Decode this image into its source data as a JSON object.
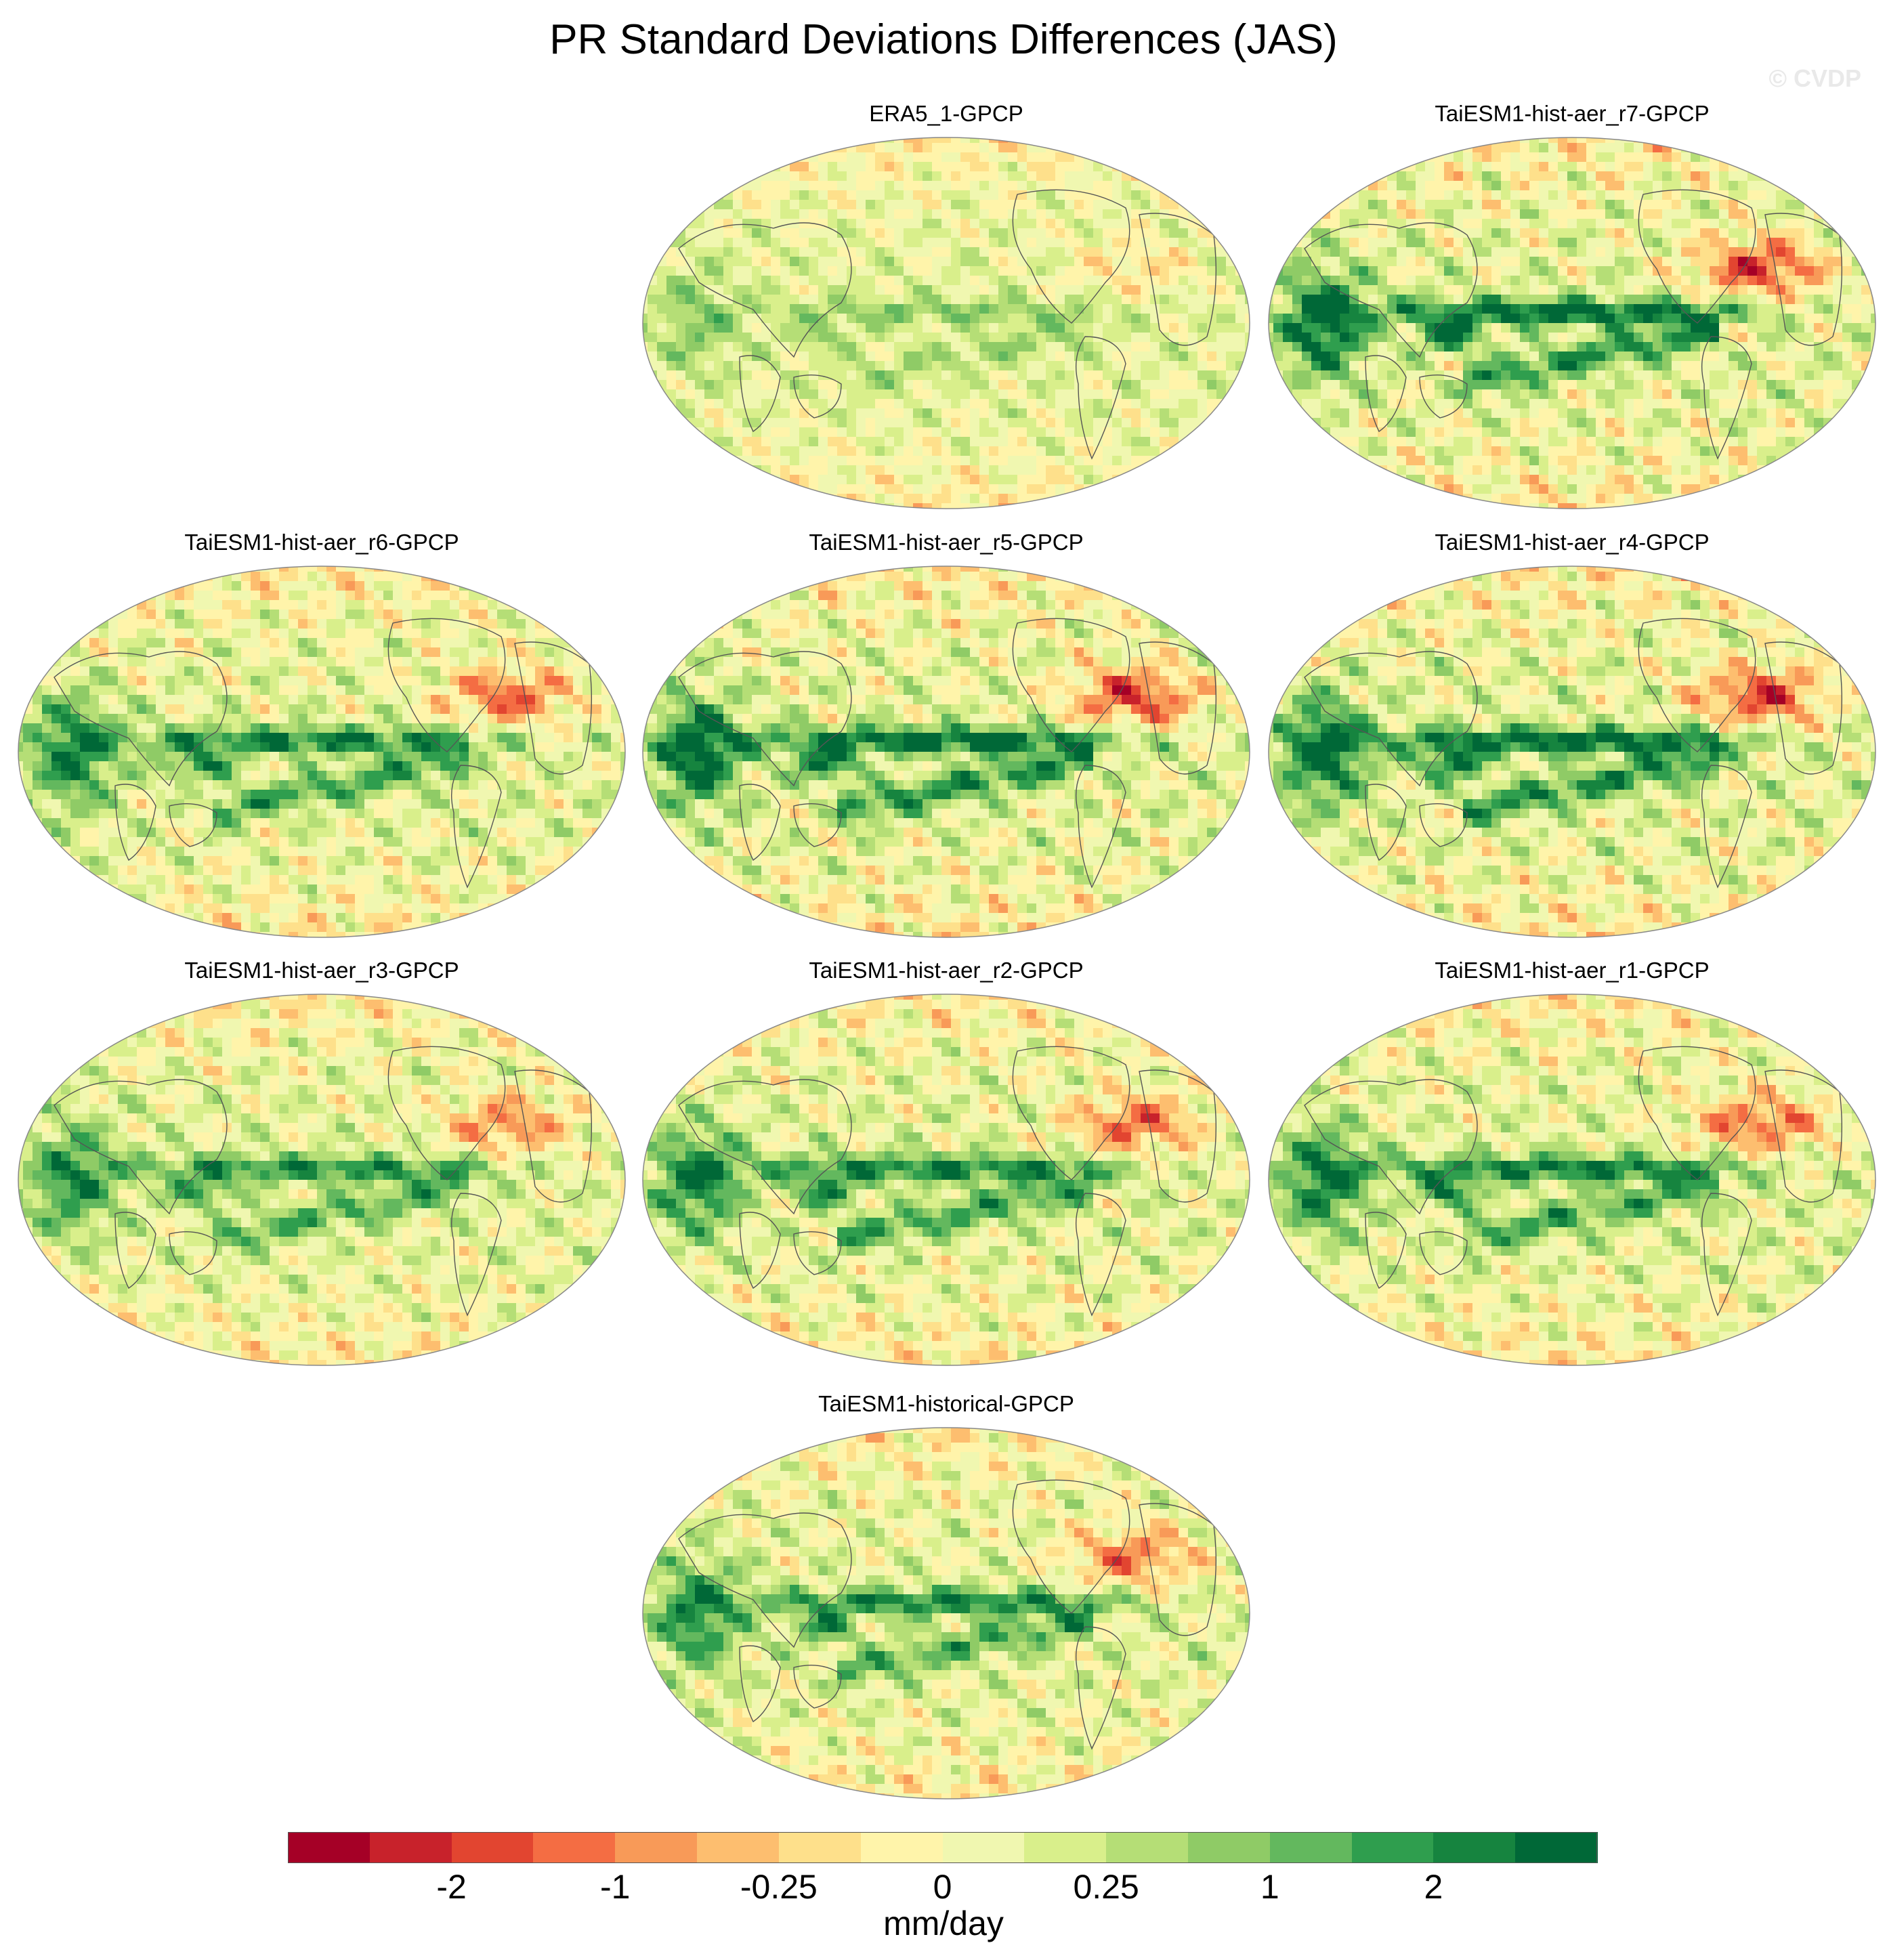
{
  "figure": {
    "title": "PR Standard Deviations Differences (JAS)",
    "watermark": "© CVDP"
  },
  "panels": [
    {
      "title": "ERA5_1-GPCP",
      "signal": 0.35
    },
    {
      "title": "TaiESM1-hist-aer_r7-GPCP",
      "signal": 1.0
    },
    {
      "title": "TaiESM1-hist-aer_r6-GPCP",
      "signal": 0.85
    },
    {
      "title": "TaiESM1-hist-aer_r5-GPCP",
      "signal": 1.0
    },
    {
      "title": "TaiESM1-hist-aer_r4-GPCP",
      "signal": 1.0
    },
    {
      "title": "TaiESM1-hist-aer_r3-GPCP",
      "signal": 0.75
    },
    {
      "title": "TaiESM1-hist-aer_r2-GPCP",
      "signal": 0.85
    },
    {
      "title": "TaiESM1-hist-aer_r1-GPCP",
      "signal": 0.85
    },
    {
      "title": "TaiESM1-historical-GPCP",
      "signal": 0.8
    }
  ],
  "colorbar": {
    "units": "mm/day",
    "colors": [
      "#a50026",
      "#c8222b",
      "#e24530",
      "#f46d43",
      "#f89a58",
      "#fdbe6f",
      "#fee08b",
      "#fff4aa",
      "#f0f7b0",
      "#d9ef8b",
      "#b5de76",
      "#8fcb66",
      "#63b85e",
      "#2f9e4e",
      "#16843f",
      "#006837"
    ],
    "labels": [
      {
        "text": "-2",
        "boundary": 2
      },
      {
        "text": "-1",
        "boundary": 4
      },
      {
        "text": "-0.25",
        "boundary": 6
      },
      {
        "text": "0",
        "boundary": 8
      },
      {
        "text": "0.25",
        "boundary": 10
      },
      {
        "text": "1",
        "boundary": 12
      },
      {
        "text": "2",
        "boundary": 14
      }
    ]
  }
}
